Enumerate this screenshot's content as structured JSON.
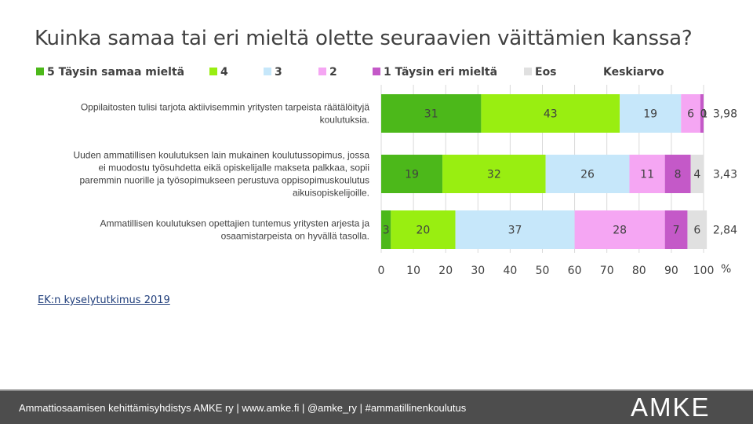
{
  "chart_data": {
    "type": "bar",
    "orientation": "horizontal-stacked",
    "title": "Kuinka samaa tai eri mieltä olette seuraavien väittämien kanssa?",
    "xlabel": "%",
    "xlim": [
      0,
      100
    ],
    "xticks": [
      "0",
      "10",
      "20",
      "30",
      "40",
      "50",
      "60",
      "70",
      "80",
      "90",
      "100"
    ],
    "average_header": "Keskiarvo",
    "legend": [
      {
        "name": "5 Täysin samaa mieltä",
        "color": "#4cb81a"
      },
      {
        "name": "4",
        "color": "#99ee11"
      },
      {
        "name": "3",
        "color": "#c6e7fa"
      },
      {
        "name": "2",
        "color": "#f5a6f3"
      },
      {
        "name": "1 Täysin eri mieltä",
        "color": "#c459c8"
      },
      {
        "name": "Eos",
        "color": "#e0e0e0"
      }
    ],
    "categories": [
      {
        "label_lines": [
          "Oppilaitosten tulisi tarjota aktiivisemmin yritysten tarpeista räätälöityjä",
          "koulutuksia."
        ],
        "values": [
          31,
          43,
          19,
          6,
          1,
          0
        ],
        "value_labels": [
          "31",
          "43",
          "19",
          "6",
          "1",
          "0"
        ],
        "average": "3,98"
      },
      {
        "label_lines": [
          "Uuden ammatillisen koulutuksen lain mukainen koulutussopimus, jossa",
          "ei muodostu työsuhdetta eikä opiskelijalle makseta palkkaa, sopii",
          "paremmin nuorille ja työsopimukseen perustuva oppisopimuskoulutus",
          "aikuisopiskelijoille."
        ],
        "values": [
          19,
          32,
          26,
          11,
          8,
          4
        ],
        "value_labels": [
          "19",
          "32",
          "26",
          "11",
          "8",
          "4"
        ],
        "average": "3,43"
      },
      {
        "label_lines": [
          "Ammatillisen koulutuksen opettajien tuntemus yritysten arjesta ja",
          "osaamistarpeista on hyvällä tasolla."
        ],
        "values": [
          3,
          20,
          37,
          28,
          7,
          6
        ],
        "value_labels": [
          "3",
          "20",
          "37",
          "28",
          "7",
          "6"
        ],
        "average": "2,84"
      }
    ]
  },
  "source": "EK:n kyselytutkimus 2019",
  "footer": {
    "text": "Ammattiosaamisen kehittämisyhdistys AMKE ry  | www.amke.fi  | @amke_ry  |  #ammatillinenkoulutus",
    "logo": "AMKE"
  }
}
